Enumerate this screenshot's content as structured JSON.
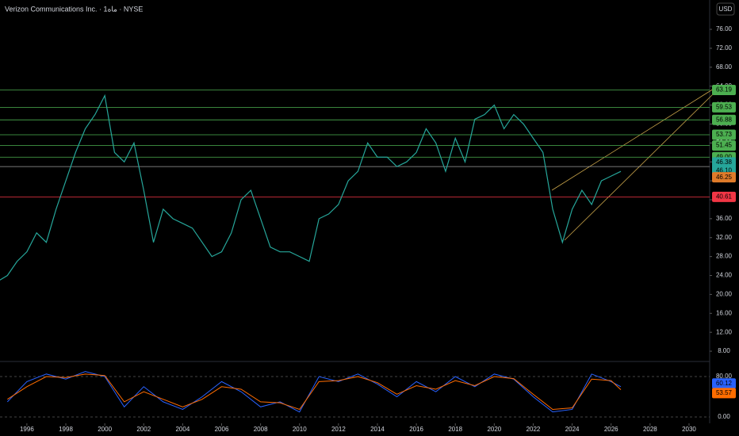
{
  "chart_data": [
    {
      "type": "line",
      "title": "Verizon Communications Inc. · 1ماه · NYSE",
      "currency": "USD",
      "color": "#26a69a",
      "x": [
        1994.6,
        1995,
        1995.5,
        1996,
        1996.5,
        1997,
        1997.5,
        1998,
        1998.5,
        1999,
        1999.5,
        2000,
        2000.5,
        2001,
        2001.5,
        2002,
        2002.5,
        2003,
        2003.5,
        2004,
        2004.5,
        2005,
        2005.5,
        2006,
        2006.5,
        2007,
        2007.5,
        2008,
        2008.5,
        2009,
        2009.5,
        2010,
        2010.5,
        2011,
        2011.5,
        2012,
        2012.5,
        2013,
        2013.5,
        2014,
        2014.5,
        2015,
        2015.5,
        2016,
        2016.5,
        2017,
        2017.5,
        2018,
        2018.5,
        2019,
        2019.5,
        2020,
        2020.5,
        2021,
        2021.5,
        2022,
        2022.5,
        2023,
        2023.5,
        2024,
        2024.5,
        2025,
        2025.5,
        2026,
        2026.5
      ],
      "values": [
        23,
        24,
        27,
        29,
        33,
        31,
        38,
        44,
        50,
        55,
        58,
        62,
        50,
        48,
        52,
        42,
        31,
        38,
        36,
        35,
        34,
        31,
        28,
        29,
        33,
        40,
        42,
        36,
        30,
        29,
        29,
        28,
        27,
        36,
        37,
        39,
        44,
        46,
        52,
        49,
        49,
        47,
        48,
        50,
        55,
        52,
        46,
        53,
        48,
        57,
        58,
        60,
        55,
        58,
        56,
        53,
        50,
        38,
        31,
        38,
        42,
        39,
        44,
        45,
        46
      ],
      "xlim": [
        1994.62,
        2031.06
      ],
      "ylim": [
        6,
        82.2
      ],
      "xticks": [
        1996,
        1998,
        2000,
        2002,
        2004,
        2006,
        2008,
        2010,
        2012,
        2014,
        2016,
        2018,
        2020,
        2022,
        2024,
        2026,
        2028,
        2030
      ],
      "yticks": [
        {
          "value": 8,
          "label": "8.00"
        },
        {
          "value": 12,
          "label": "12.00"
        },
        {
          "value": 16,
          "label": "16.00"
        },
        {
          "value": 20,
          "label": "20.00"
        },
        {
          "value": 24,
          "label": "24.00"
        },
        {
          "value": 28,
          "label": "28.00"
        },
        {
          "value": 32,
          "label": "32.00"
        },
        {
          "value": 36,
          "label": "36.00"
        },
        {
          "value": 40,
          "label": "40.00"
        },
        {
          "value": 44,
          "label": "44.00"
        },
        {
          "value": 48,
          "label": "48.00"
        },
        {
          "value": 52,
          "label": "52.00"
        },
        {
          "value": 56,
          "label": "56.00"
        },
        {
          "value": 60,
          "label": "60.00"
        },
        {
          "value": 64,
          "label": "64.00"
        },
        {
          "value": 68,
          "label": "68.00"
        },
        {
          "value": 72,
          "label": "72.00"
        },
        {
          "value": 76,
          "label": "76.00"
        }
      ],
      "hlines": [
        63.19,
        59.53,
        56.88,
        53.73,
        51.45,
        {
          "value": 49,
          "label": "49.00"
        },
        47.01,
        40.61
      ],
      "hline_colors": [
        "#4caf50",
        "#4caf50",
        "#4caf50",
        "#4caf50",
        "#4caf50",
        "#4caf50",
        "#9e9e9e",
        "#f23645"
      ],
      "price_labels": [
        46.38,
        {
          "value": 46.1,
          "label": "46.10"
        },
        46.25
      ],
      "price_label_colors": [
        "#26a69a",
        "#26a69a",
        "#e07b2a"
      ]
    },
    {
      "type": "line",
      "x": [
        1995,
        1996,
        1997,
        1998,
        1999,
        2000,
        2001,
        2002,
        2003,
        2004,
        2005,
        2006,
        2007,
        2008,
        2009,
        2010,
        2011,
        2012,
        2013,
        2014,
        2015,
        2016,
        2017,
        2018,
        2019,
        2020,
        2021,
        2022,
        2023,
        2024,
        2025,
        2026,
        2026.5
      ],
      "series": [
        {
          "color": "#2962ff",
          "values": [
            30,
            70,
            85,
            75,
            90,
            80,
            20,
            60,
            30,
            15,
            40,
            70,
            50,
            20,
            30,
            10,
            80,
            70,
            85,
            65,
            40,
            70,
            50,
            80,
            60,
            85,
            75,
            40,
            10,
            15,
            85,
            70,
            60
          ]
        },
        {
          "color": "#ff6d00",
          "values": [
            35,
            60,
            80,
            78,
            85,
            82,
            30,
            50,
            35,
            20,
            35,
            60,
            55,
            30,
            28,
            15,
            70,
            72,
            80,
            68,
            45,
            62,
            55,
            72,
            62,
            80,
            76,
            45,
            15,
            18,
            75,
            72,
            54
          ]
        }
      ],
      "xlim": [
        1994.62,
        2031.06
      ],
      "ylim": [
        -12.5,
        106.7
      ],
      "yticks": [
        {
          "value": 0,
          "label": "0.00"
        },
        {
          "value": 80,
          "label": "80.00"
        }
      ],
      "last_labels": [
        {
          "value": 60.12,
          "label": "60.12"
        },
        {
          "value": 53.57,
          "label": "53.57"
        }
      ]
    }
  ]
}
